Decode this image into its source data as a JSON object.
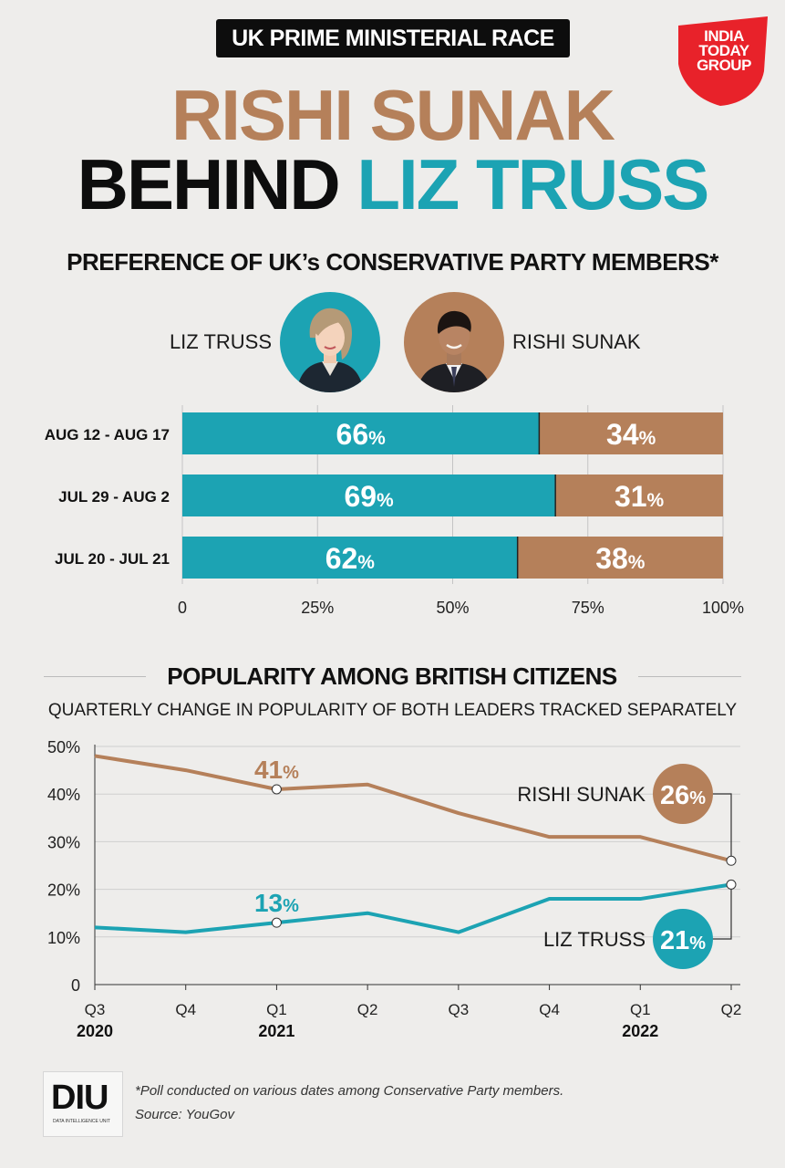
{
  "header": {
    "kicker": "UK PRIME MINISTERIAL RACE",
    "headline_line1": "RISHI SUNAK",
    "headline_line2_a": "BEHIND",
    "headline_line2_b": "LIZ TRUSS",
    "logo_text": [
      "INDIA",
      "TODAY",
      "GROUP"
    ]
  },
  "colors": {
    "truss": "#1ca3b3",
    "sunak": "#b5805a",
    "logo_red": "#e8222a"
  },
  "section1": {
    "title": "PREFERENCE OF UK’s CONSERVATIVE PARTY MEMBERS*",
    "truss_label": "LIZ TRUSS",
    "sunak_label": "RISHI SUNAK"
  },
  "section2": {
    "title": "POPULARITY AMONG BRITISH CITIZENS",
    "subtitle": "QUARTERLY CHANGE IN POPULARITY OF BOTH LEADERS TRACKED SEPARATELY"
  },
  "chart_data": [
    {
      "type": "bar",
      "stacked": true,
      "orientation": "horizontal",
      "categories": [
        "AUG 12 - AUG 17",
        "JUL 29 - AUG 2",
        "JUL 20 - JUL 21"
      ],
      "series": [
        {
          "name": "LIZ TRUSS",
          "values": [
            66,
            69,
            62
          ],
          "color": "#1ca3b3"
        },
        {
          "name": "RISHI SUNAK",
          "values": [
            34,
            31,
            38
          ],
          "color": "#b5805a"
        }
      ],
      "xlim": [
        0,
        100
      ],
      "xticks": [
        "0",
        "25%",
        "50%",
        "75%",
        "100%"
      ],
      "value_suffix": "%"
    },
    {
      "type": "line",
      "x": [
        "Q3",
        "Q4",
        "Q1",
        "Q2",
        "Q3",
        "Q4",
        "Q1",
        "Q2"
      ],
      "year_labels": [
        {
          "index": 0,
          "label": "2020"
        },
        {
          "index": 2,
          "label": "2021"
        },
        {
          "index": 6,
          "label": "2022"
        }
      ],
      "series": [
        {
          "name": "RISHI SUNAK",
          "values": [
            48,
            45,
            41,
            42,
            36,
            31,
            31,
            26
          ],
          "color": "#b5805a"
        },
        {
          "name": "LIZ TRUSS",
          "values": [
            12,
            11,
            13,
            15,
            11,
            18,
            18,
            21
          ],
          "color": "#1ca3b3"
        }
      ],
      "ylim": [
        0,
        50
      ],
      "yticks": [
        "0",
        "10%",
        "20%",
        "30%",
        "40%",
        "50%"
      ],
      "grid": true,
      "annotations": [
        {
          "series": "RISHI SUNAK",
          "index": 2,
          "text": "41%"
        },
        {
          "series": "LIZ TRUSS",
          "index": 2,
          "text": "13%"
        }
      ],
      "end_labels": [
        {
          "series": "RISHI SUNAK",
          "name": "RISHI SUNAK",
          "value": "26%"
        },
        {
          "series": "LIZ TRUSS",
          "name": "LIZ TRUSS",
          "value": "21%"
        }
      ]
    }
  ],
  "footer": {
    "logo_text": "DIU",
    "logo_caption": "DATA INTELLIGENCE UNIT",
    "note": "*Poll conducted on various dates among Conservative Party members.",
    "source": "Source: YouGov"
  }
}
